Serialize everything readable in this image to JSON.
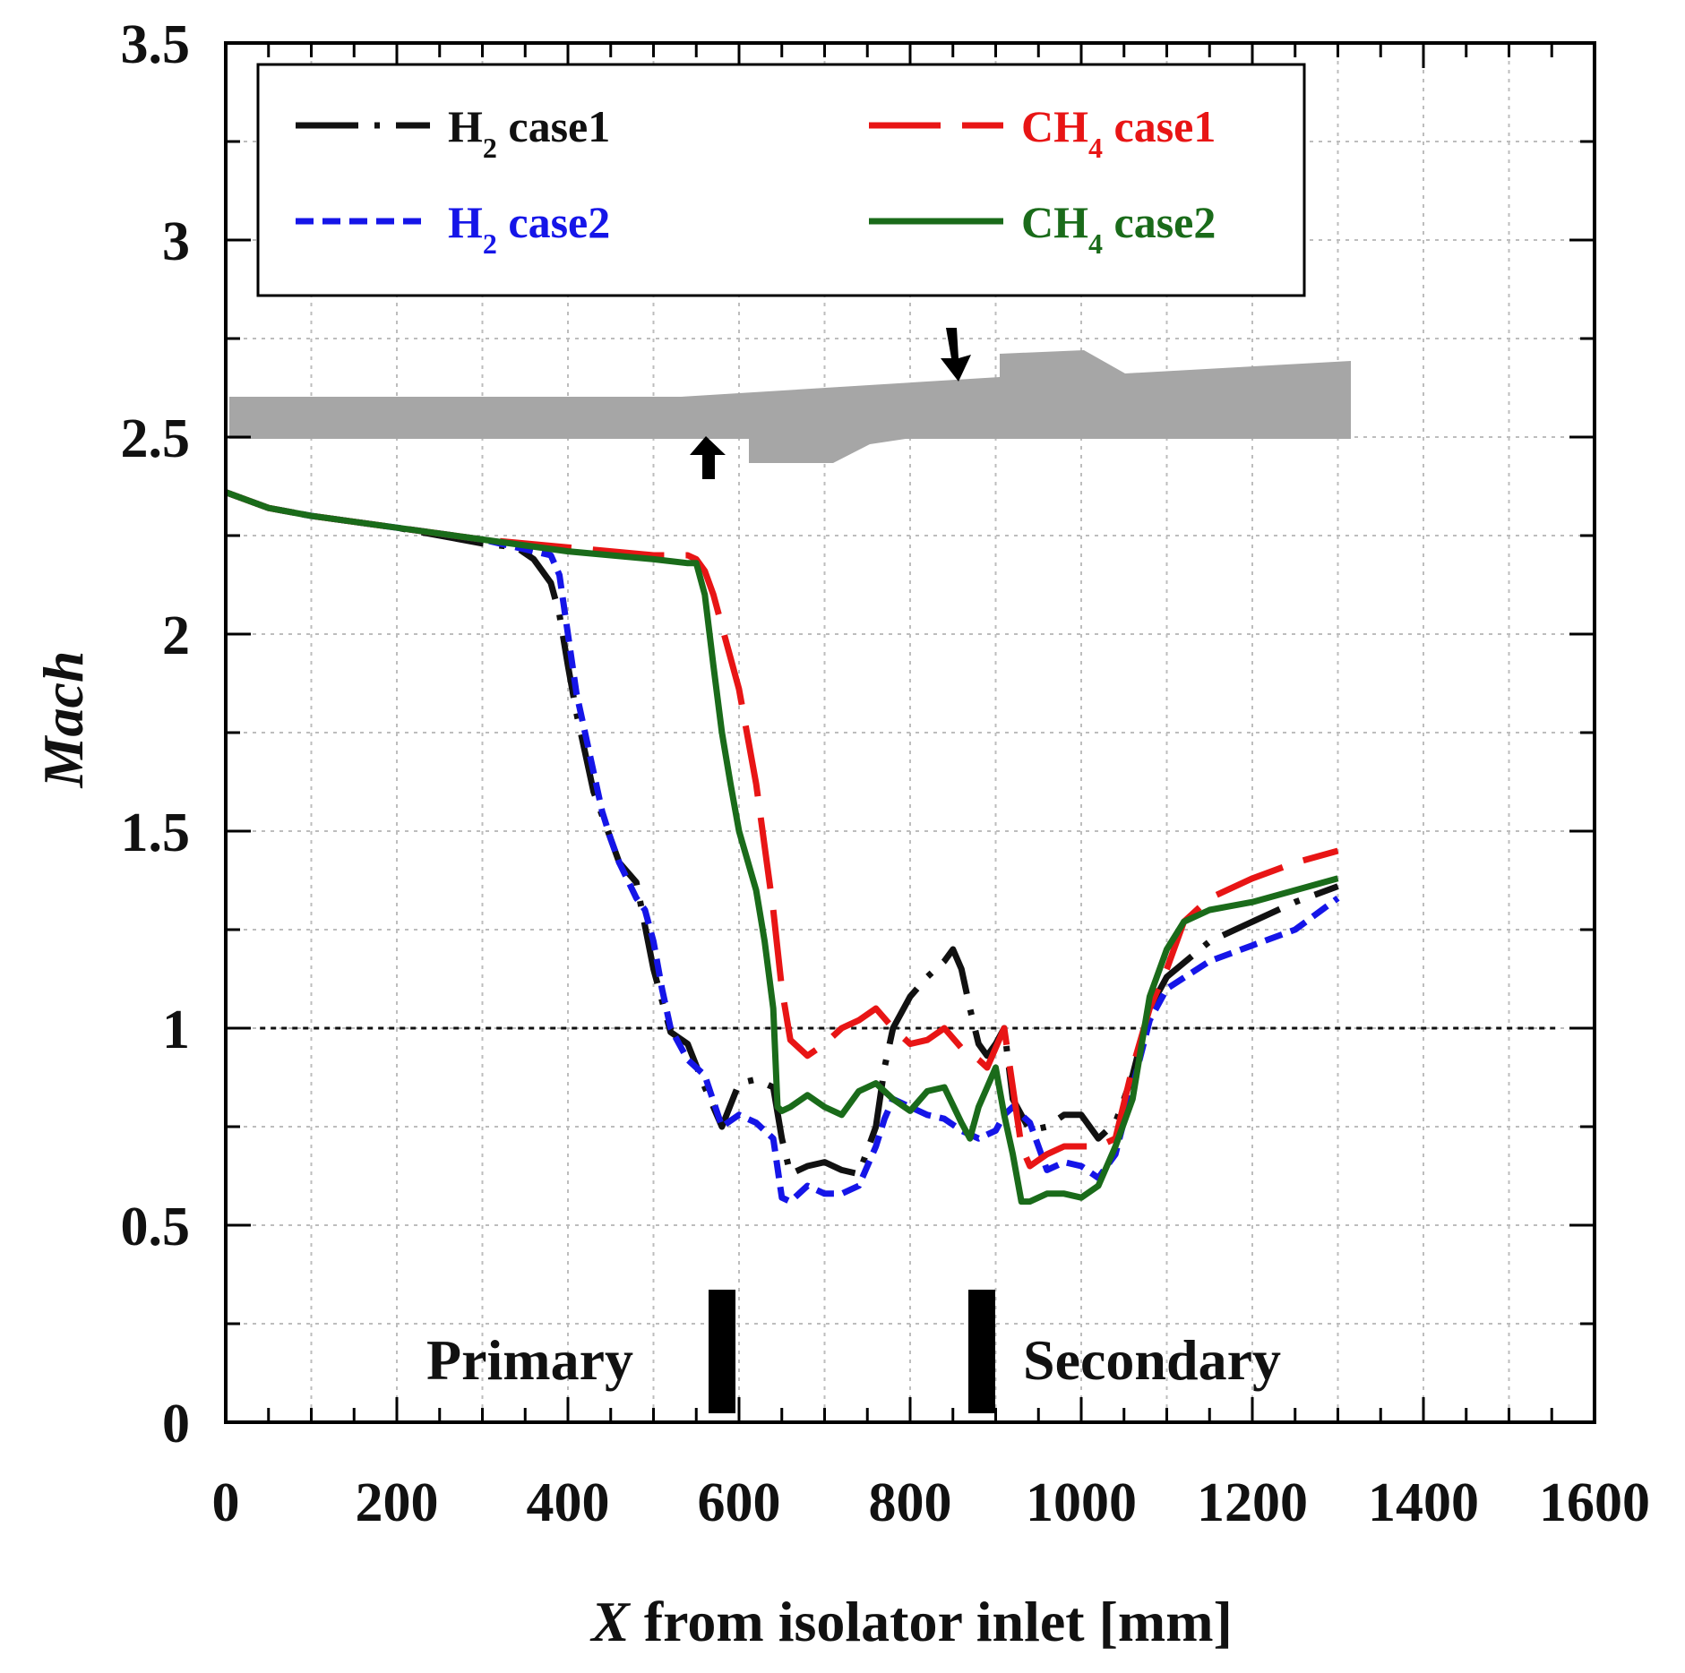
{
  "chart_data": {
    "type": "line",
    "title": "",
    "xlabel_italic": "X",
    "xlabel_rest": " from isolator inlet [mm]",
    "ylabel": "Mach",
    "xlim": [
      0,
      1600
    ],
    "ylim": [
      0,
      3.5
    ],
    "xticks": [
      0,
      200,
      400,
      600,
      800,
      1000,
      1200,
      1400,
      1600
    ],
    "yticks": [
      0,
      0.5,
      1,
      1.5,
      2,
      2.5,
      3,
      3.5
    ],
    "ytick_labels": [
      "0",
      "0.5",
      "1",
      "1.5",
      "2",
      "2.5",
      "3",
      "3.5"
    ],
    "grid": true,
    "reference_line_y": 1.0,
    "legend_position": "top",
    "colors": {
      "h2_case1": "#111111",
      "h2_case2": "#1515e8",
      "ch4_case1": "#e81515",
      "ch4_case2": "#1a6b1a",
      "geometry": "#a6a6a6",
      "injector": "#000000"
    },
    "legend": [
      {
        "key": "h2_case1",
        "main": "H",
        "sub": "2",
        "rest": " case1"
      },
      {
        "key": "h2_case2",
        "main": "H",
        "sub": "2",
        "rest": " case2"
      },
      {
        "key": "ch4_case1",
        "main": "CH",
        "sub": "4",
        "rest": " case1"
      },
      {
        "key": "ch4_case2",
        "main": "CH",
        "sub": "4",
        "rest": " case2"
      }
    ],
    "series": [
      {
        "key": "h2_case1",
        "name": "H2 case1",
        "dash": "long-dash-dot",
        "x": [
          0,
          50,
          100,
          200,
          300,
          340,
          360,
          380,
          390,
          400,
          410,
          420,
          430,
          440,
          450,
          460,
          480,
          500,
          520,
          540,
          560,
          580,
          600,
          620,
          640,
          650,
          660,
          680,
          700,
          720,
          740,
          760,
          770,
          780,
          800,
          820,
          840,
          850,
          860,
          870,
          880,
          890,
          900,
          910,
          920,
          940,
          960,
          980,
          1000,
          1020,
          1040,
          1060,
          1080,
          1100,
          1150,
          1200,
          1250,
          1300
        ],
        "y": [
          2.36,
          2.32,
          2.3,
          2.27,
          2.23,
          2.22,
          2.19,
          2.13,
          2.05,
          1.92,
          1.8,
          1.7,
          1.6,
          1.54,
          1.48,
          1.42,
          1.37,
          1.15,
          0.99,
          0.96,
          0.85,
          0.75,
          0.86,
          0.87,
          0.85,
          0.72,
          0.63,
          0.65,
          0.66,
          0.64,
          0.63,
          0.75,
          0.9,
          1.0,
          1.08,
          1.13,
          1.17,
          1.2,
          1.15,
          1.05,
          0.96,
          0.93,
          0.96,
          1.0,
          0.82,
          0.74,
          0.75,
          0.78,
          0.78,
          0.72,
          0.76,
          0.88,
          1.05,
          1.13,
          1.22,
          1.27,
          1.32,
          1.36
        ]
      },
      {
        "key": "h2_case2",
        "name": "H2 case2",
        "dash": "short-dash",
        "x": [
          0,
          50,
          100,
          200,
          300,
          360,
          380,
          390,
          400,
          410,
          420,
          430,
          440,
          450,
          460,
          480,
          490,
          500,
          510,
          520,
          540,
          560,
          580,
          600,
          620,
          640,
          650,
          660,
          680,
          700,
          720,
          740,
          760,
          770,
          780,
          800,
          820,
          840,
          860,
          880,
          900,
          910,
          920,
          940,
          960,
          980,
          1000,
          1020,
          1040,
          1060,
          1080,
          1100,
          1150,
          1200,
          1250,
          1300
        ],
        "y": [
          2.36,
          2.32,
          2.3,
          2.27,
          2.24,
          2.21,
          2.2,
          2.15,
          2.0,
          1.85,
          1.75,
          1.65,
          1.55,
          1.48,
          1.42,
          1.33,
          1.3,
          1.22,
          1.1,
          1.0,
          0.92,
          0.88,
          0.75,
          0.78,
          0.76,
          0.72,
          0.57,
          0.56,
          0.6,
          0.58,
          0.58,
          0.6,
          0.7,
          0.77,
          0.82,
          0.8,
          0.78,
          0.77,
          0.74,
          0.72,
          0.74,
          0.78,
          0.8,
          0.76,
          0.64,
          0.66,
          0.65,
          0.62,
          0.68,
          0.85,
          1.02,
          1.1,
          1.17,
          1.21,
          1.25,
          1.33
        ]
      },
      {
        "key": "ch4_case1",
        "name": "CH4 case1",
        "dash": "long-dash",
        "x": [
          0,
          50,
          100,
          200,
          300,
          400,
          500,
          540,
          550,
          560,
          570,
          580,
          600,
          620,
          640,
          650,
          660,
          680,
          700,
          720,
          740,
          760,
          780,
          800,
          820,
          840,
          860,
          880,
          890,
          900,
          910,
          920,
          930,
          940,
          960,
          980,
          1000,
          1020,
          1040,
          1060,
          1080,
          1100,
          1120,
          1150,
          1200,
          1250,
          1300
        ],
        "y": [
          2.36,
          2.32,
          2.3,
          2.27,
          2.24,
          2.22,
          2.2,
          2.2,
          2.19,
          2.16,
          2.1,
          2.02,
          1.86,
          1.62,
          1.3,
          1.1,
          0.97,
          0.93,
          0.96,
          1.0,
          1.02,
          1.05,
          1.0,
          0.96,
          0.97,
          1.0,
          0.95,
          0.92,
          0.9,
          0.95,
          1.0,
          0.85,
          0.7,
          0.65,
          0.68,
          0.7,
          0.7,
          0.7,
          0.72,
          0.9,
          1.05,
          1.15,
          1.27,
          1.33,
          1.38,
          1.42,
          1.45
        ]
      },
      {
        "key": "ch4_case2",
        "name": "CH4 case2",
        "dash": "solid",
        "x": [
          0,
          50,
          100,
          200,
          300,
          400,
          500,
          540,
          550,
          560,
          570,
          580,
          590,
          600,
          620,
          630,
          640,
          645,
          650,
          660,
          680,
          700,
          720,
          740,
          760,
          780,
          800,
          820,
          840,
          860,
          870,
          880,
          890,
          900,
          910,
          920,
          930,
          940,
          960,
          980,
          1000,
          1020,
          1040,
          1060,
          1070,
          1080,
          1100,
          1120,
          1150,
          1200,
          1250,
          1300
        ],
        "y": [
          2.36,
          2.32,
          2.3,
          2.27,
          2.24,
          2.21,
          2.19,
          2.18,
          2.18,
          2.1,
          1.92,
          1.75,
          1.62,
          1.5,
          1.35,
          1.22,
          1.05,
          0.8,
          0.79,
          0.8,
          0.83,
          0.8,
          0.78,
          0.84,
          0.86,
          0.82,
          0.79,
          0.84,
          0.85,
          0.76,
          0.72,
          0.8,
          0.85,
          0.9,
          0.78,
          0.68,
          0.56,
          0.56,
          0.58,
          0.58,
          0.57,
          0.6,
          0.7,
          0.82,
          0.95,
          1.08,
          1.2,
          1.27,
          1.3,
          1.32,
          1.35,
          1.38
        ]
      }
    ],
    "annotations": {
      "primary": "Primary",
      "secondary": "Secondary",
      "injector_positions": [
        580,
        880
      ]
    }
  }
}
